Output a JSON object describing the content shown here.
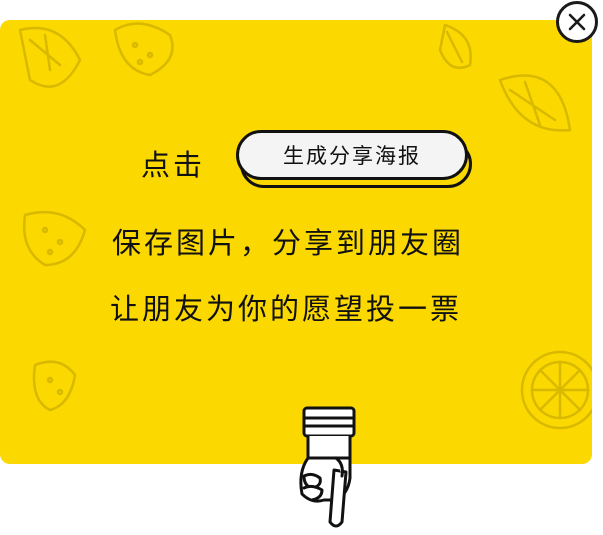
{
  "popup": {
    "line1_prefix": "点击",
    "generate_button_label": "生成分享海报",
    "line2": "保存图片，分享到朋友圈",
    "line3": "让朋友为你的愿望投一票"
  },
  "colors": {
    "background": "#FFFFFF",
    "card": "#FAD800",
    "button_face": "#F4F4F4",
    "ink": "#111111",
    "doodle": "#D9B800"
  },
  "icons": {
    "close": "close-icon",
    "pointer": "pointing-hand-icon"
  }
}
